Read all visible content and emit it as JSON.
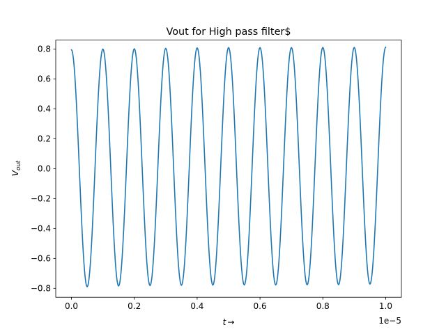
{
  "chart_data": {
    "type": "line",
    "title": "Vout for High pass filter$",
    "xlabel_main": "t",
    "xlabel_arrow": "→",
    "ylabel_main": "V",
    "ylabel_sub": "out",
    "x_offset_label": "1e−5",
    "xlim": [
      -0.05,
      1.05
    ],
    "ylim": [
      -0.86,
      0.86
    ],
    "x_ticks": [
      0.0,
      0.2,
      0.4,
      0.6,
      0.8,
      1.0
    ],
    "x_tick_labels": [
      "0.0",
      "0.2",
      "0.4",
      "0.6",
      "0.8",
      "1.0"
    ],
    "y_ticks": [
      -0.8,
      -0.6,
      -0.4,
      -0.2,
      0.0,
      0.2,
      0.4,
      0.6,
      0.8
    ],
    "y_tick_labels": [
      "−0.8",
      "−0.6",
      "−0.4",
      "−0.2",
      "0.0",
      "0.2",
      "0.4",
      "0.6",
      "0.8"
    ],
    "grid": false,
    "series": [
      {
        "color": "#1f77b4",
        "x": [
          0.0,
          0.05,
          0.1,
          0.15,
          0.2,
          0.25,
          0.3,
          0.35,
          0.4,
          0.45,
          0.5,
          0.55,
          0.6,
          0.65,
          0.7,
          0.75,
          0.8,
          0.85,
          0.9,
          0.95,
          1.0
        ],
        "values": [
          0.795,
          -0.79,
          0.8,
          -0.785,
          0.802,
          -0.782,
          0.805,
          -0.78,
          0.808,
          -0.779,
          0.81,
          -0.778,
          0.81,
          -0.778,
          0.81,
          -0.777,
          0.811,
          -0.776,
          0.811,
          -0.772,
          0.812
        ]
      }
    ]
  }
}
